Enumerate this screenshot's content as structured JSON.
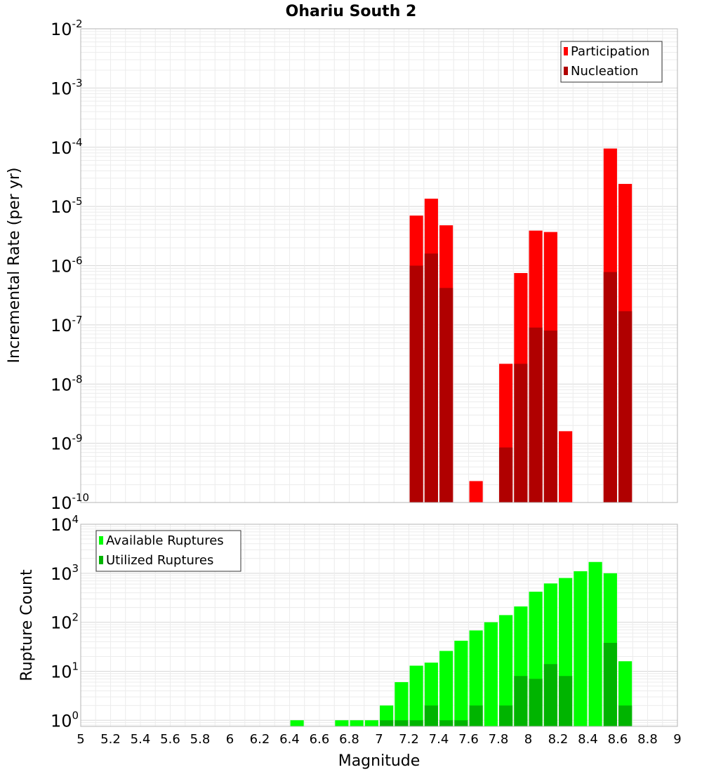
{
  "chart_data": [
    {
      "type": "bar",
      "title": "Ohariu South 2",
      "xlabel": "Magnitude",
      "ylabel": "Incremental Rate (per yr)",
      "yscale": "log",
      "xlim": [
        5,
        9
      ],
      "ylim": [
        1e-10,
        0.01
      ],
      "ytick_exponents": [
        "-2",
        "-3",
        "-4",
        "-5",
        "-6",
        "-7",
        "-8",
        "-9",
        "-10"
      ],
      "grid": true,
      "legend": {
        "placement": "top-right",
        "entries": [
          "Participation",
          "Nucleation"
        ]
      },
      "bar_width": 0.09,
      "x": [
        7.25,
        7.35,
        7.45,
        7.65,
        7.85,
        7.95,
        8.05,
        8.15,
        8.25,
        8.55,
        8.65
      ],
      "series": [
        {
          "name": "Participation",
          "color": "#ff0000",
          "values": [
            7e-06,
            1.35e-05,
            4.8e-06,
            2.3e-10,
            2.2e-08,
            7.5e-07,
            3.9e-06,
            3.7e-06,
            1.6e-09,
            9.5e-05,
            2.4e-05
          ]
        },
        {
          "name": "Nucleation",
          "color": "#b00000",
          "values": [
            1e-06,
            1.6e-06,
            4.2e-07,
            null,
            8.5e-10,
            2.2e-08,
            9e-08,
            8e-08,
            null,
            7.8e-07,
            1.7e-07
          ]
        }
      ]
    },
    {
      "type": "bar",
      "xlabel": "Magnitude",
      "ylabel": "Rupture Count",
      "yscale": "log",
      "xlim": [
        5,
        9
      ],
      "ylim": [
        0.75,
        10000
      ],
      "ytick_exponents": [
        "4",
        "3",
        "2",
        "1",
        "0"
      ],
      "xticks": [
        "5",
        "5.2",
        "5.4",
        "5.6",
        "5.8",
        "6",
        "6.2",
        "6.4",
        "6.6",
        "6.8",
        "7",
        "7.2",
        "7.4",
        "7.6",
        "7.8",
        "8",
        "8.2",
        "8.4",
        "8.6",
        "8.8",
        "9"
      ],
      "grid": true,
      "legend": {
        "placement": "top-left",
        "entries": [
          "Available Ruptures",
          "Utilized Ruptures"
        ]
      },
      "bar_width": 0.09,
      "x": [
        6.45,
        6.75,
        6.85,
        6.95,
        7.05,
        7.15,
        7.25,
        7.35,
        7.45,
        7.55,
        7.65,
        7.75,
        7.85,
        7.95,
        8.05,
        8.15,
        8.25,
        8.35,
        8.45,
        8.55,
        8.65
      ],
      "series": [
        {
          "name": "Available Ruptures",
          "color": "#00ff00",
          "values": [
            1,
            1,
            1,
            1,
            2,
            6,
            13,
            15,
            26,
            42,
            68,
            100,
            140,
            210,
            420,
            620,
            800,
            1100,
            1700,
            1000,
            16
          ]
        },
        {
          "name": "Utilized Ruptures",
          "color": "#00b400",
          "values": [
            null,
            null,
            null,
            null,
            1,
            1,
            1,
            2,
            1,
            1,
            2,
            null,
            2,
            8,
            7,
            14,
            8,
            null,
            null,
            38,
            2
          ]
        }
      ]
    }
  ]
}
